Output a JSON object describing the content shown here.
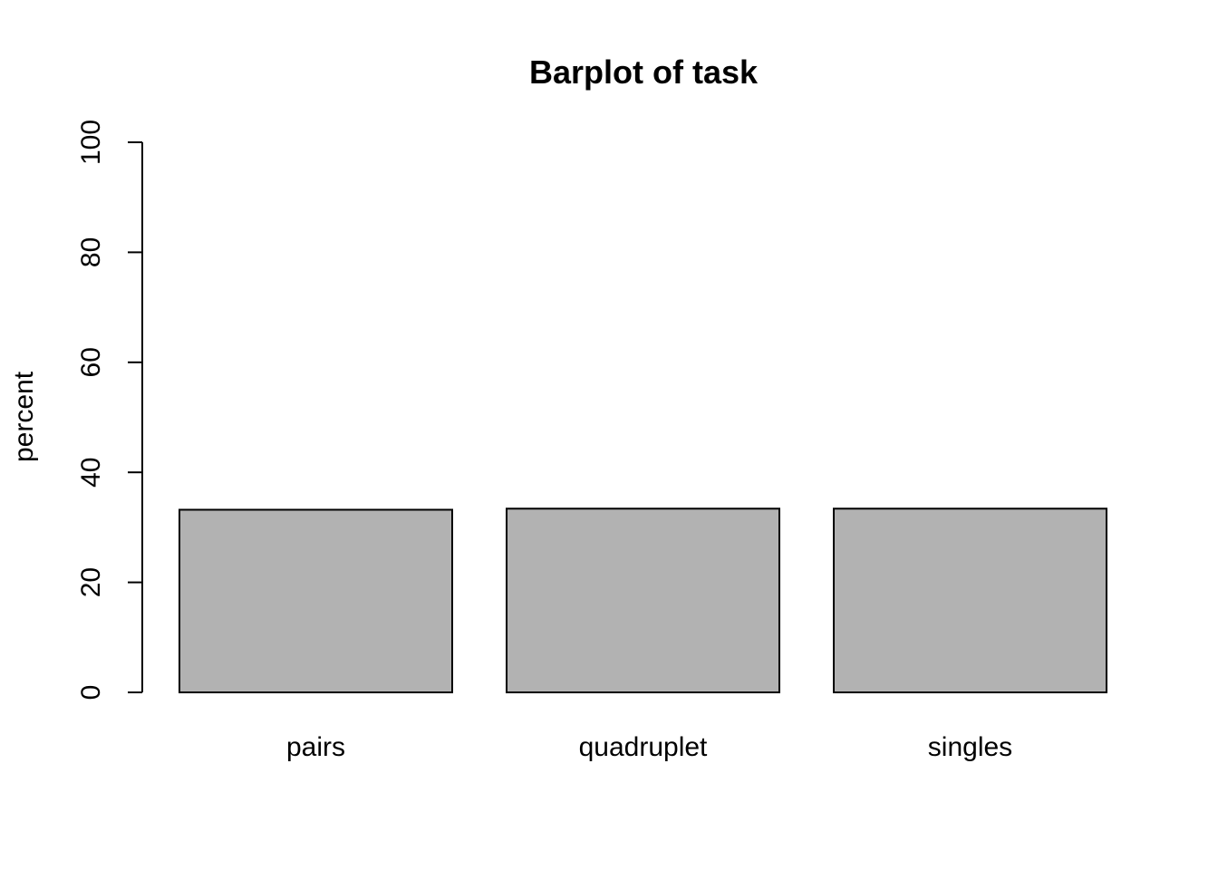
{
  "chart_data": {
    "type": "bar",
    "title": "Barplot of task",
    "xlabel": "",
    "ylabel": "percent",
    "categories": [
      "pairs",
      "quadruplet",
      "singles"
    ],
    "values": [
      33.2,
      33.4,
      33.4
    ],
    "ylim": [
      0,
      100
    ],
    "yticks": [
      "0",
      "20",
      "40",
      "60",
      "80",
      "100"
    ],
    "bar_color": "#b2b2b2",
    "grid": false,
    "legend": "none"
  }
}
